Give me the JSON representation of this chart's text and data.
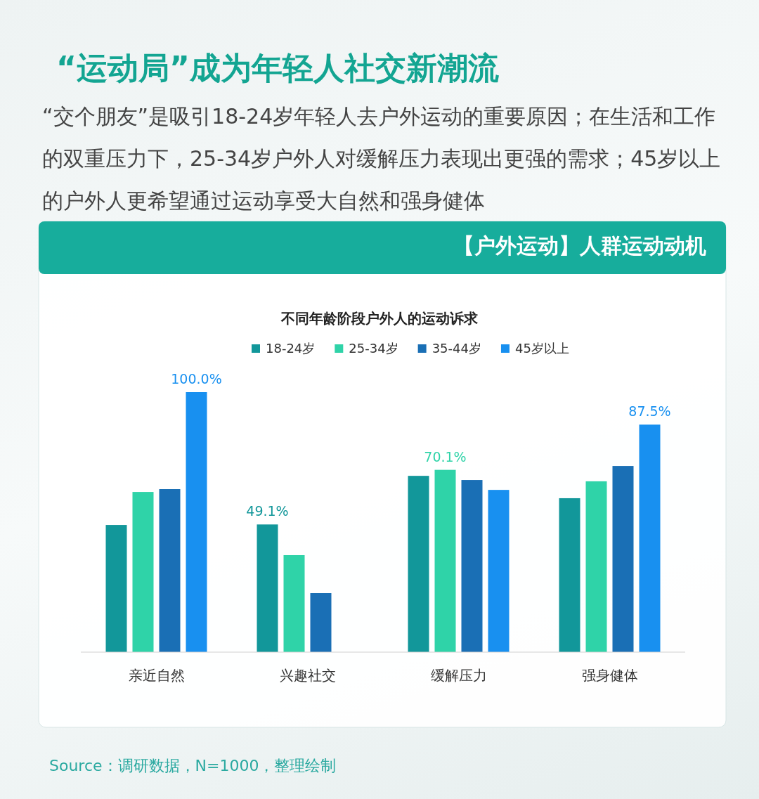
{
  "chart_data": {
    "type": "bar",
    "title": "“运动局”成为年轻人社交新潮流",
    "subtitle": "不同年龄阶段户外人的运动诉求",
    "annotations": [
      "“交个朋友”是吸引18-24岁年轻人去户外运动的重要原因；在生活和工作的双重压力下，25-34岁户外人对缓解压力表现出更强的需求；45岁以上的户外人更希望通过运动享受大自然和强身健体",
      "【户外运动】人群运动动机",
      "Source：调研数据，N=1000，整理绘制"
    ],
    "categories": [
      "亲近自然",
      "兴趣社交",
      "缓解压力",
      "强身健体"
    ],
    "series": [
      {
        "name": "18-24岁",
        "color": "#12979a",
        "values": [
          48.9,
          49.1,
          67.8,
          59.2
        ],
        "value_labels": [
          null,
          "49.1%",
          null,
          null
        ]
      },
      {
        "name": "25-34岁",
        "color": "#2fd3a8",
        "values": [
          61.6,
          37.3,
          70.1,
          65.7
        ],
        "value_labels": [
          null,
          null,
          "70.1%",
          null
        ]
      },
      {
        "name": "35-44岁",
        "color": "#1a6fb5",
        "values": [
          62.7,
          22.7,
          66.2,
          71.6
        ],
        "value_labels": [
          null,
          null,
          null,
          null
        ]
      },
      {
        "name": "45岁以上",
        "color": "#1890f0",
        "values": [
          100.0,
          null,
          62.4,
          87.5
        ],
        "value_labels": [
          "100.0%",
          null,
          null,
          "87.5%"
        ]
      }
    ],
    "legend": "top"
  }
}
